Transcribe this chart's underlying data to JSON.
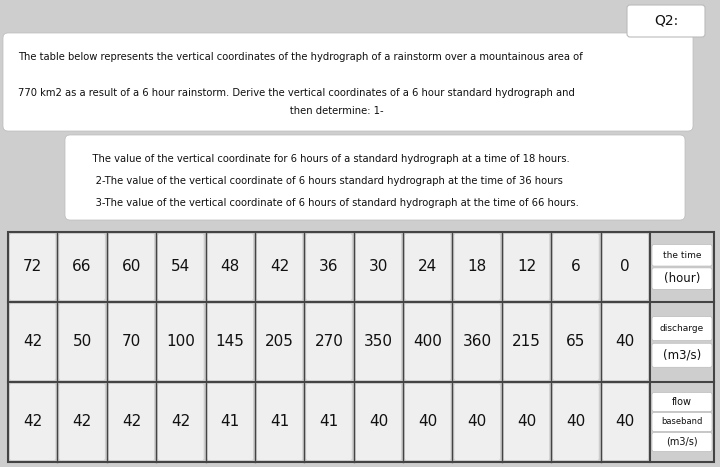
{
  "bg_color": "#cecece",
  "q2_label": "Q2:",
  "text_block1_lines": [
    "The table below represents the vertical coordinates of the hydrograph of a rainstorm over a mountainous area of",
    "",
    "770 km2 as a result of a 6 hour rainstorm. Derive the vertical coordinates of a 6 hour standard hydrograph and",
    "                                                                                       then determine: 1-"
  ],
  "text_block2_lines": [
    "    The value of the vertical coordinate for 6 hours of a standard hydrograph at a time of 18 hours.",
    "     2-The value of the vertical coordinate of 6 hours standard hydrograph at the time of 36 hours",
    "     3-The value of the vertical coordinate of 6 hours of standard hydrograph at the time of 66 hours."
  ],
  "time_values": [
    "72",
    "66",
    "60",
    "54",
    "48",
    "42",
    "36",
    "30",
    "24",
    "18",
    "12",
    "6",
    "0"
  ],
  "discharge_values": [
    "42",
    "50",
    "70",
    "100",
    "145",
    "205",
    "270",
    "350",
    "400",
    "360",
    "215",
    "65",
    "40"
  ],
  "baseflow_values": [
    "42",
    "42",
    "42",
    "42",
    "41",
    "41",
    "41",
    "40",
    "40",
    "40",
    "40",
    "40",
    "40"
  ],
  "text_color": "#111111",
  "cell_bg": "#efefef",
  "cell_highlight_bg": "#e0e0e0",
  "table_border_color": "#444444",
  "header_bg": "#e8e8e8",
  "white_box_bg": "#f5f5f5"
}
